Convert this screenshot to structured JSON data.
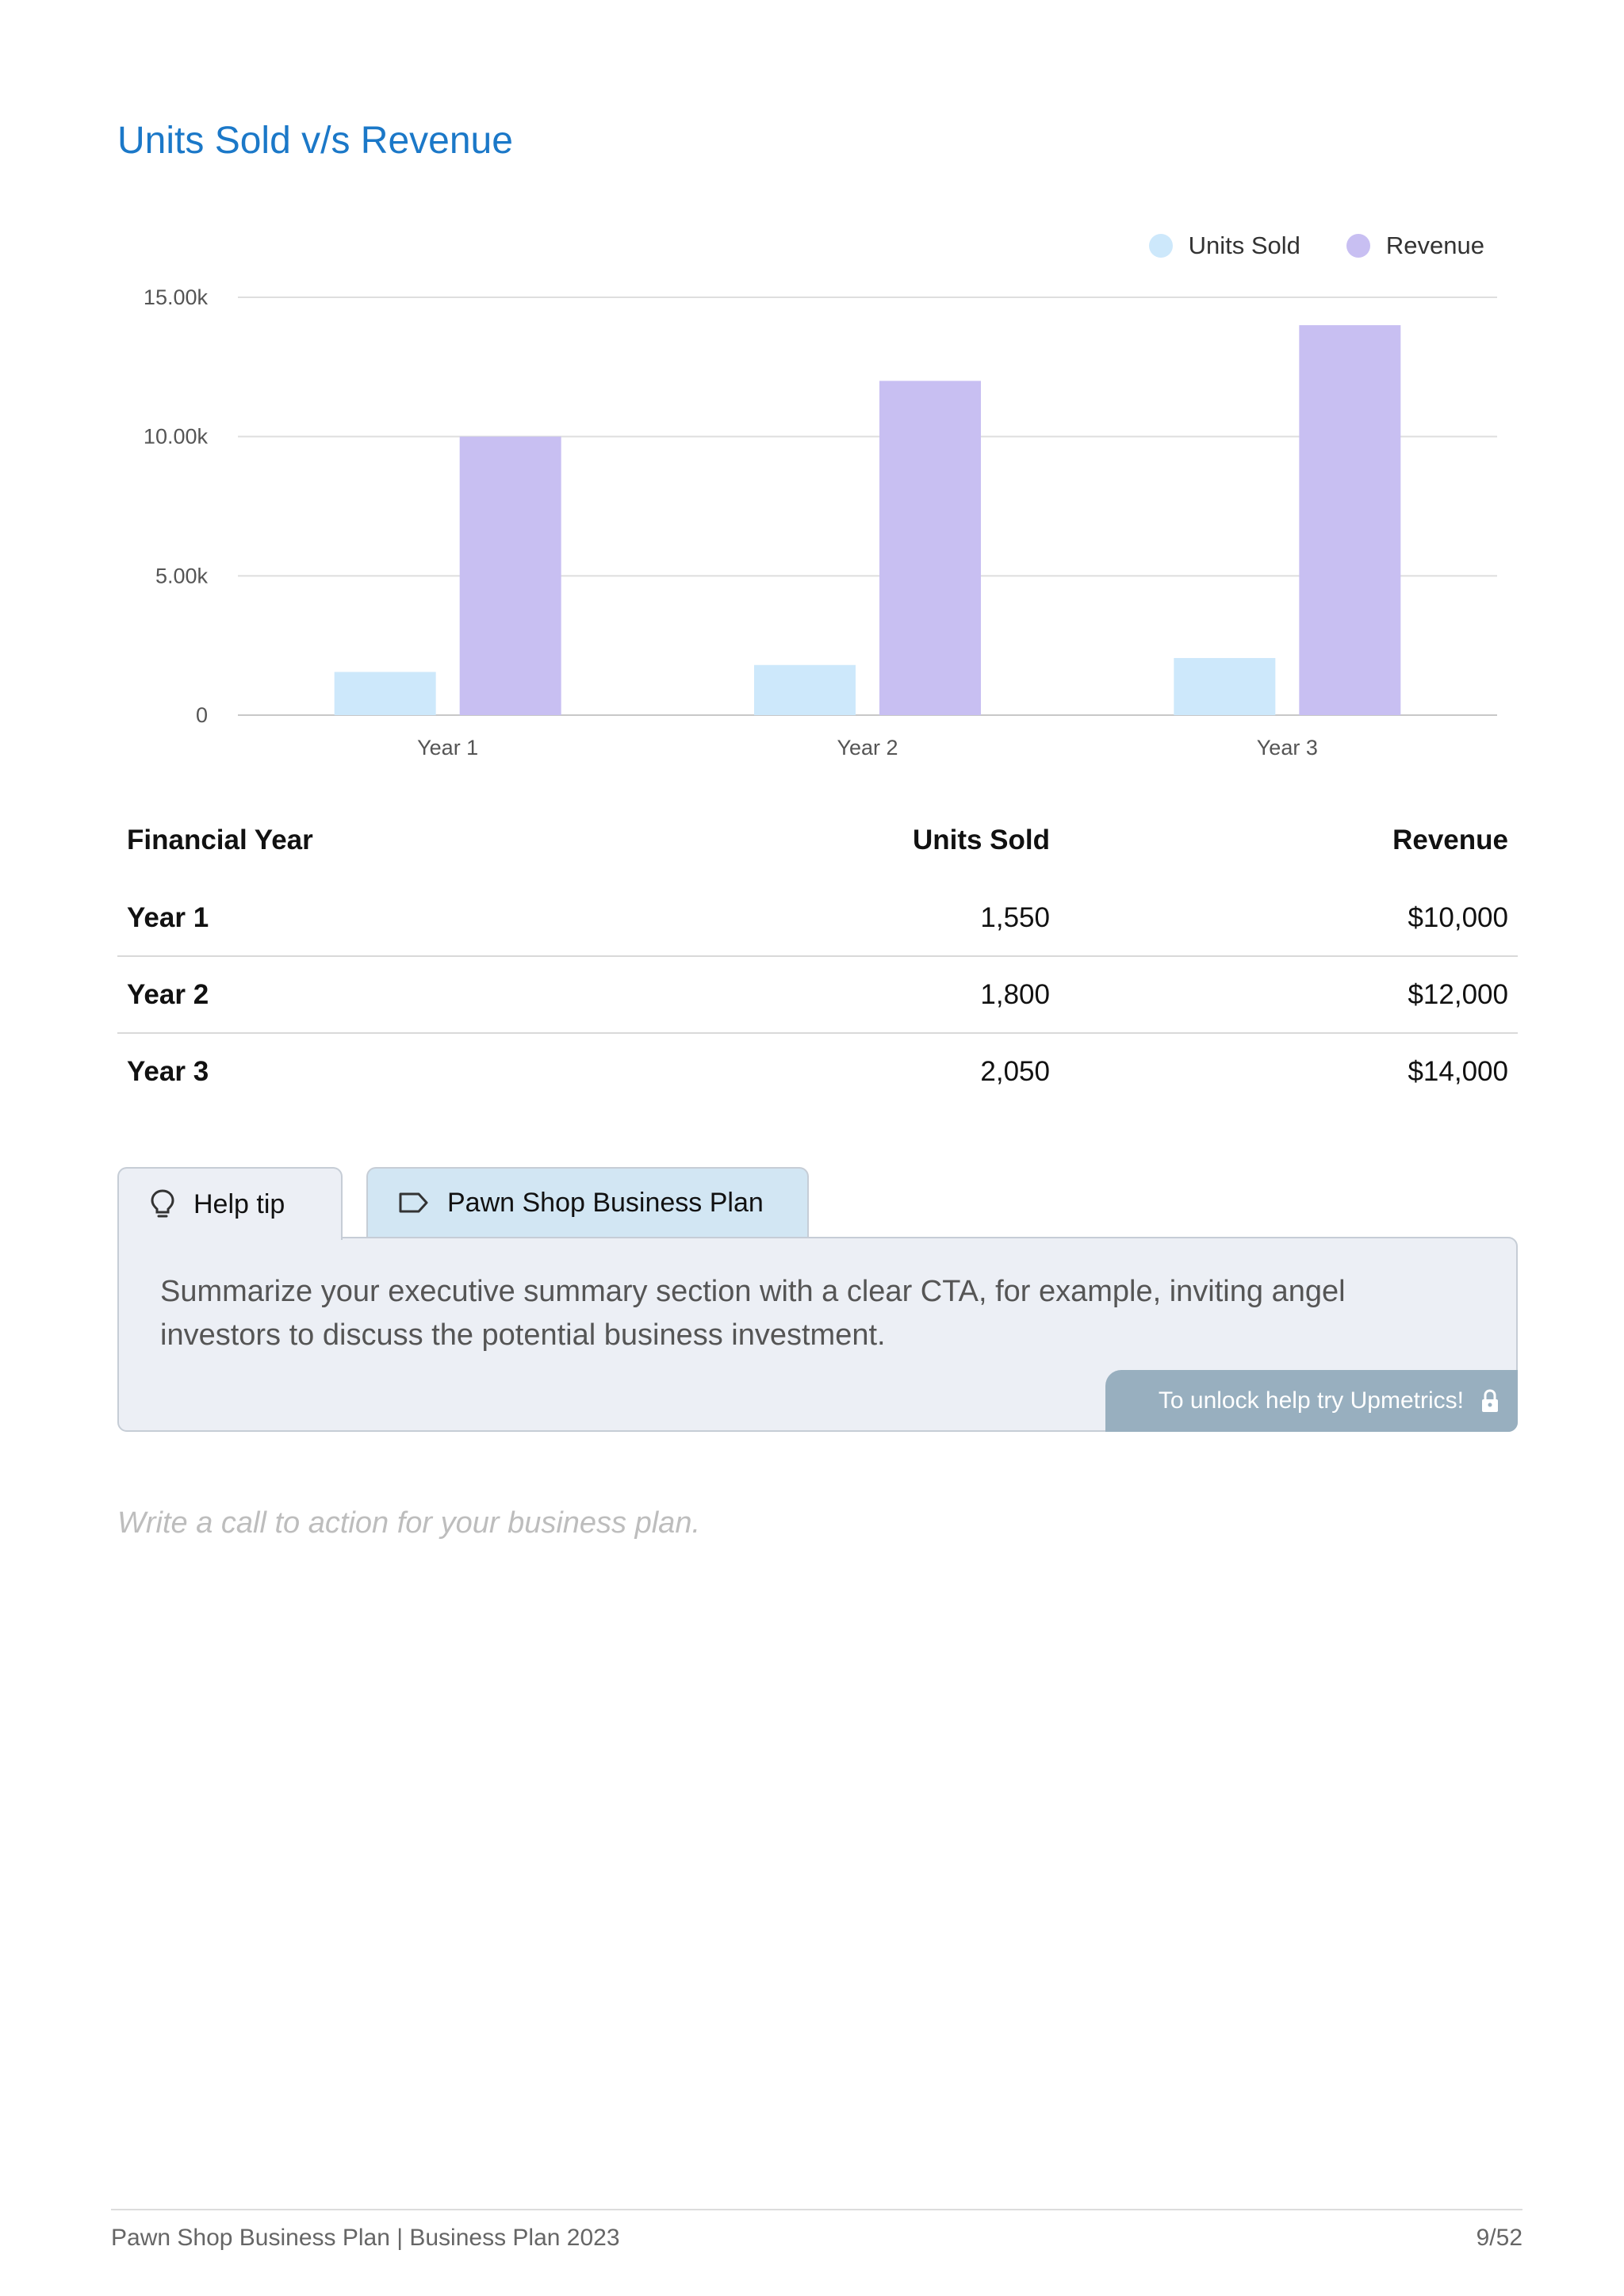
{
  "title": "Units Sold v/s Revenue",
  "colors": {
    "units_sold": "#cde8fb",
    "revenue": "#c8bff2",
    "title": "#1b78c8"
  },
  "chart_data": {
    "type": "bar",
    "categories": [
      "Year 1",
      "Year 2",
      "Year 3"
    ],
    "series": [
      {
        "name": "Units Sold",
        "values": [
          1550,
          1800,
          2050
        ]
      },
      {
        "name": "Revenue",
        "values": [
          10000,
          12000,
          14000
        ]
      }
    ],
    "yticks": [
      "0",
      "5.00k",
      "10.00k",
      "15.00k"
    ],
    "ylim": [
      0,
      15000
    ],
    "grid": true,
    "legend": "top-right"
  },
  "table": {
    "headers": [
      "Financial Year",
      "Units Sold",
      "Revenue"
    ],
    "rows": [
      [
        "Year 1",
        "1,550",
        "$10,000"
      ],
      [
        "Year 2",
        "1,800",
        "$12,000"
      ],
      [
        "Year 3",
        "2,050",
        "$14,000"
      ]
    ]
  },
  "tabs": {
    "help": {
      "label": "Help tip",
      "icon": "lightbulb-icon"
    },
    "plan": {
      "label": "Pawn Shop Business Plan",
      "icon": "tag-icon"
    }
  },
  "tip": {
    "text": "Summarize your executive summary section with a clear CTA, for example, inviting angel investors to discuss the potential business investment.",
    "unlock_label": "To unlock help try Upmetrics!",
    "unlock_icon": "lock-icon"
  },
  "cta_placeholder": "Write a call to action for your business plan.",
  "footer": {
    "left": "Pawn Shop Business Plan | Business Plan 2023",
    "right": "9/52"
  }
}
